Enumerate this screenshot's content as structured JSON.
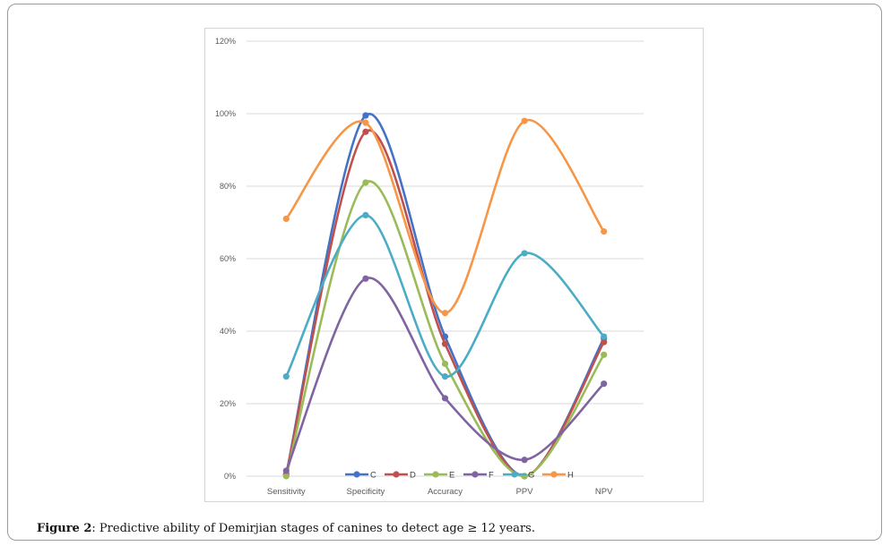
{
  "caption": {
    "label": "Figure 2",
    "text": ": Predictive ability of Demirjian stages of canines to detect age ≥ 12 years."
  },
  "chart_data": {
    "type": "line",
    "categories": [
      "Sensitivity",
      "Specificity",
      "Accuracy",
      "PPV",
      "NPV"
    ],
    "ylim": [
      0,
      120
    ],
    "yticks": [
      "0%",
      "20%",
      "40%",
      "60%",
      "80%",
      "100%",
      "120%"
    ],
    "ytick_values": [
      0,
      20,
      40,
      60,
      80,
      100,
      120
    ],
    "grid": true,
    "legend_position": "bottom",
    "series": [
      {
        "name": "C",
        "color": "#4472C4",
        "values": [
          0.5,
          99.5,
          38.5,
          0,
          38
        ]
      },
      {
        "name": "D",
        "color": "#C0504D",
        "values": [
          0.5,
          95,
          36.5,
          0,
          37
        ]
      },
      {
        "name": "E",
        "color": "#9BBB59",
        "values": [
          0,
          81,
          31,
          0,
          33.5
        ]
      },
      {
        "name": "F",
        "color": "#8064A2",
        "values": [
          1.5,
          54.5,
          21.5,
          4.5,
          25.5
        ]
      },
      {
        "name": "G",
        "color": "#4BACC6",
        "values": [
          27.5,
          72,
          27.5,
          61.5,
          38.5
        ]
      },
      {
        "name": "H",
        "color": "#F79646",
        "values": [
          71,
          97.5,
          45,
          98,
          67.5
        ]
      }
    ]
  }
}
